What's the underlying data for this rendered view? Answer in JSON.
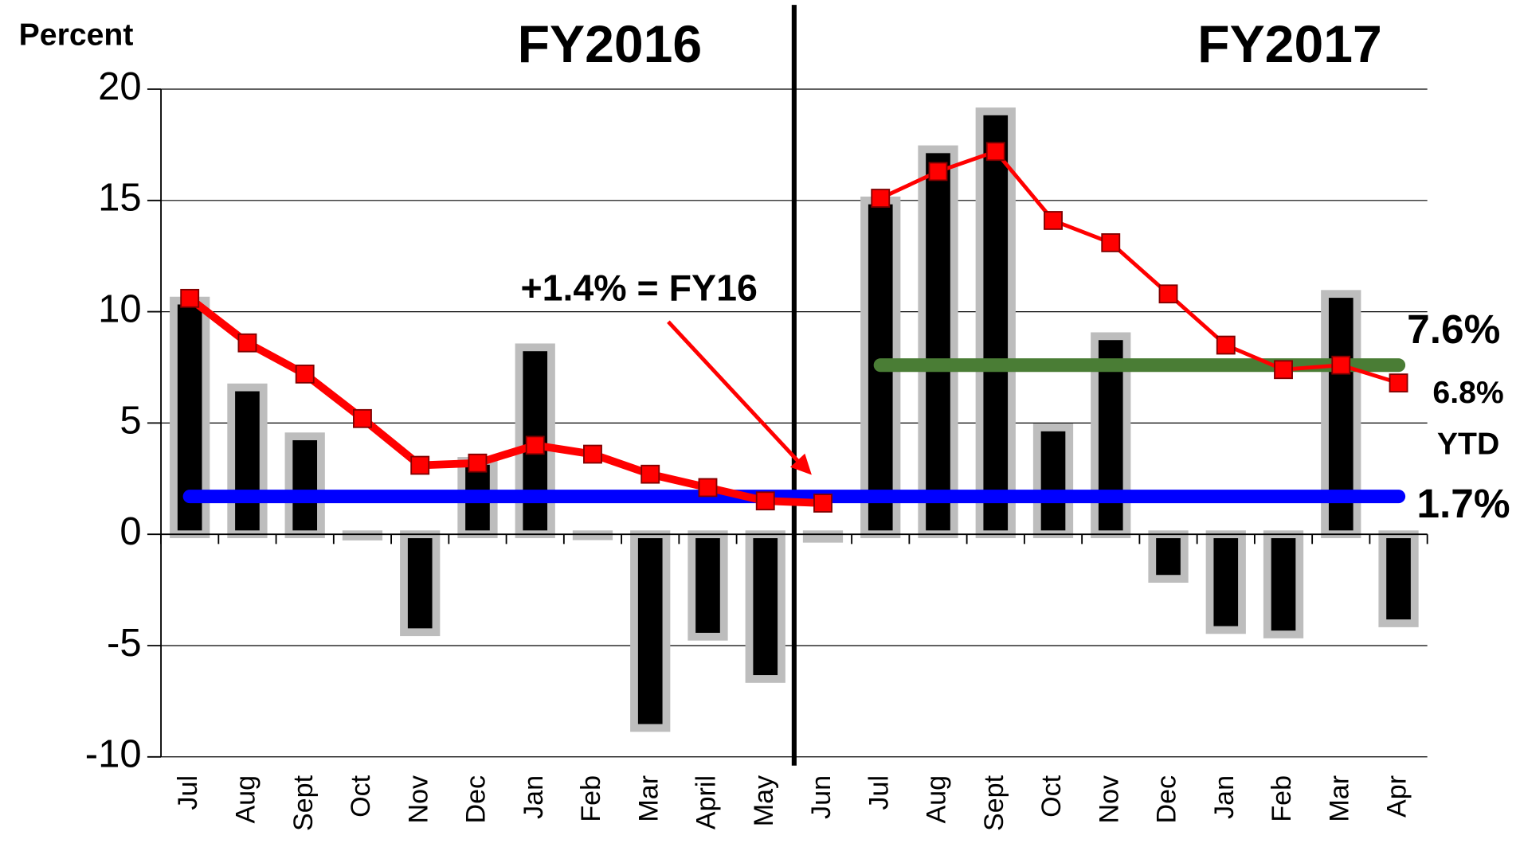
{
  "chart_data": {
    "type": "bar",
    "y_axis_label": "Percent",
    "section_titles": [
      "FY2016",
      "FY2017"
    ],
    "categories": [
      "Jul",
      "Aug",
      "Sept",
      "Oct",
      "Nov",
      "Dec",
      "Jan",
      "Feb",
      "Mar",
      "April",
      "May",
      "Jun",
      "Jul",
      "Aug",
      "Sept",
      "Oct",
      "Nov",
      "Dec",
      "Jan",
      "Feb",
      "Mar",
      "Apr"
    ],
    "values": [
      10.5,
      6.6,
      4.4,
      -0.1,
      -4.4,
      3.3,
      8.4,
      -0.05,
      -8.7,
      -4.6,
      -6.5,
      -0.2,
      15.0,
      17.3,
      19.0,
      4.8,
      8.9,
      -2.0,
      -4.3,
      -4.5,
      10.8,
      -4.0
    ],
    "color": "#000000",
    "outline_color": "#bdbdbd",
    "lines": [
      {
        "color": "#ff0000",
        "values": [
          10.6,
          8.6,
          7.2,
          5.2,
          3.1,
          3.2,
          4.0,
          3.6,
          2.7,
          2.1,
          1.5,
          1.4,
          null,
          null,
          null,
          null,
          null,
          null,
          null,
          null,
          null,
          null
        ]
      },
      {
        "color": "#ff0000",
        "values": [
          null,
          null,
          null,
          null,
          null,
          null,
          null,
          null,
          null,
          null,
          null,
          null,
          15.1,
          16.3,
          17.2,
          14.1,
          13.1,
          10.8,
          8.5,
          7.4,
          7.6,
          6.8
        ]
      }
    ],
    "reference_lines": [
      {
        "value": 1.7,
        "label": "1.7%",
        "color": "#0000ff",
        "start": 0,
        "end": 21
      },
      {
        "value": 7.6,
        "label": "7.6%",
        "color": "#4a7d35",
        "start": 12,
        "end": 21
      }
    ],
    "annotations": [
      {
        "text": "+1.4% = FY16",
        "color": "#ff0000"
      },
      {
        "text": "6.8%",
        "color": "#ff0000"
      },
      {
        "text": "YTD",
        "color": "#ff0000"
      }
    ],
    "ylim": [
      -10,
      20
    ],
    "yticks": [
      -10,
      -5,
      0,
      5,
      10,
      15,
      20
    ],
    "grid": true
  }
}
